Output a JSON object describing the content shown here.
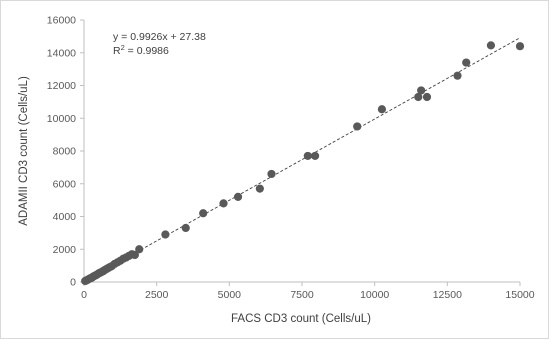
{
  "chart_data": {
    "type": "scatter",
    "xlabel": "FACS CD3 count (Cells/uL)",
    "ylabel": "ADAMII CD3 count (Cells/uL)",
    "xlim": [
      0,
      15000
    ],
    "ylim": [
      0,
      16000
    ],
    "x_ticks": [
      "0",
      "2500",
      "5000",
      "7500",
      "10000",
      "12500",
      "15000"
    ],
    "y_ticks": [
      "0",
      "2000",
      "4000",
      "6000",
      "8000",
      "10000",
      "12000",
      "14000",
      "16000"
    ],
    "grid": false,
    "legend": "none",
    "trendline": {
      "type": "linear",
      "slope": 0.9926,
      "intercept": 27.38,
      "equation": "y = 0.9926x + 27.38",
      "r_squared_label": "R",
      "r_squared_sup": "2",
      "r_squared_value": " = 0.9986"
    },
    "colors": {
      "marker": "#595959",
      "trendline": "#404040",
      "axis": "#bfbfbf"
    },
    "points": [
      [
        40,
        60
      ],
      [
        80,
        90
      ],
      [
        120,
        130
      ],
      [
        150,
        160
      ],
      [
        190,
        200
      ],
      [
        230,
        240
      ],
      [
        270,
        260
      ],
      [
        310,
        320
      ],
      [
        350,
        360
      ],
      [
        390,
        400
      ],
      [
        430,
        430
      ],
      [
        470,
        480
      ],
      [
        520,
        540
      ],
      [
        560,
        570
      ],
      [
        610,
        620
      ],
      [
        660,
        660
      ],
      [
        700,
        720
      ],
      [
        760,
        780
      ],
      [
        820,
        840
      ],
      [
        880,
        900
      ],
      [
        950,
        960
      ],
      [
        1050,
        1100
      ],
      [
        1150,
        1200
      ],
      [
        1250,
        1300
      ],
      [
        1350,
        1420
      ],
      [
        1450,
        1500
      ],
      [
        1550,
        1600
      ],
      [
        1650,
        1700
      ],
      [
        1750,
        1650
      ],
      [
        1900,
        2000
      ],
      [
        2800,
        2900
      ],
      [
        3500,
        3300
      ],
      [
        4100,
        4200
      ],
      [
        4800,
        4800
      ],
      [
        5300,
        5200
      ],
      [
        6050,
        5700
      ],
      [
        6450,
        6600
      ],
      [
        7700,
        7700
      ],
      [
        7950,
        7700
      ],
      [
        9400,
        9500
      ],
      [
        10250,
        10550
      ],
      [
        11500,
        11300
      ],
      [
        11600,
        11700
      ],
      [
        11800,
        11300
      ],
      [
        12850,
        12600
      ],
      [
        13150,
        13400
      ],
      [
        14000,
        14450
      ],
      [
        15000,
        14400
      ]
    ]
  }
}
